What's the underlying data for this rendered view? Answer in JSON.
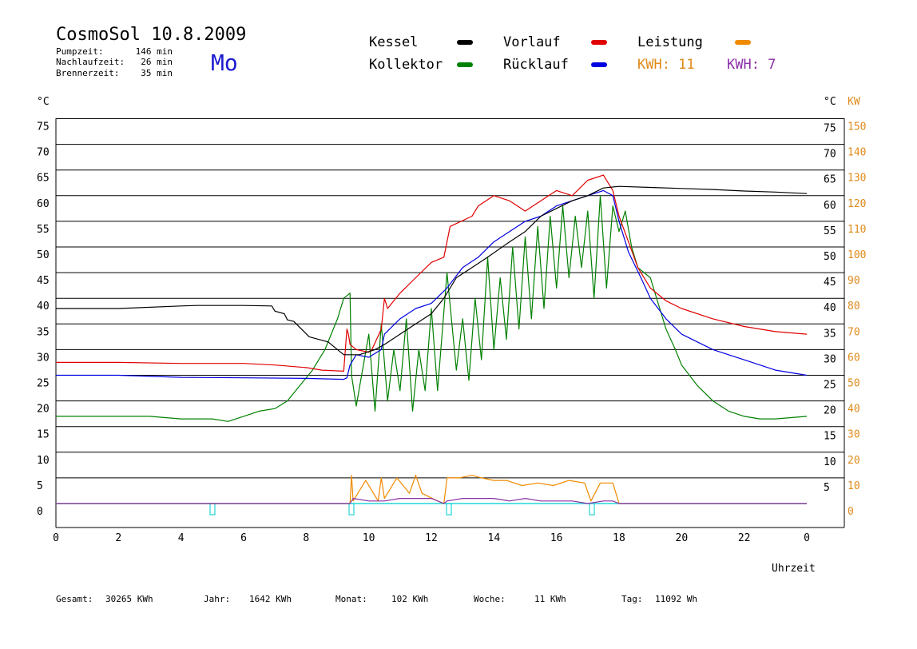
{
  "header": {
    "title": "CosmoSol 10.8.2009",
    "day": "Mo",
    "stats": [
      {
        "label": "Pumpzeit:",
        "value": "146 min"
      },
      {
        "label": "Nachlaufzeit:",
        "value": "26 min"
      },
      {
        "label": "Brennerzeit:",
        "value": "35 min"
      }
    ]
  },
  "legend": {
    "items": [
      {
        "label": "Kessel",
        "color": "#000000"
      },
      {
        "label": "Vorlauf",
        "color": "#e00000"
      },
      {
        "label": "Leistung",
        "color": "#f08a00"
      },
      {
        "label": "Kollektor",
        "color": "#008000"
      },
      {
        "label": "Rücklauf",
        "color": "#0000e0"
      }
    ],
    "kwh": [
      {
        "text": "KWH: 11",
        "color": "#e08a1a"
      },
      {
        "text": "KWH: 7",
        "color": "#8b2fa6"
      }
    ]
  },
  "axes": {
    "y_left_unit": "°C",
    "y_right_unit_temp": "°C",
    "y_right_unit_power": "KW",
    "x_label": "Uhrzeit",
    "x_ticks": [
      "0",
      "2",
      "4",
      "6",
      "8",
      "10",
      "12",
      "14",
      "16",
      "18",
      "20",
      "22",
      "0"
    ],
    "temp_ticks": [
      "0",
      "5",
      "10",
      "15",
      "20",
      "25",
      "30",
      "35",
      "40",
      "45",
      "50",
      "55",
      "60",
      "65",
      "70",
      "75"
    ],
    "right_temp_ticks": [
      "5",
      "10",
      "15",
      "20",
      "25",
      "30",
      "35",
      "40",
      "45",
      "50",
      "55",
      "60",
      "65",
      "70",
      "75"
    ],
    "power_ticks": [
      "0",
      "10",
      "20",
      "30",
      "40",
      "50",
      "60",
      "70",
      "80",
      "90",
      "100",
      "110",
      "120",
      "130",
      "140",
      "150"
    ]
  },
  "footer": {
    "items": [
      {
        "label": "Gesamt:",
        "value": "30265 KWh"
      },
      {
        "label": "Jahr:",
        "value": "1642 KWh"
      },
      {
        "label": "Monat:",
        "value": "102 KWh"
      },
      {
        "label": "Woche:",
        "value": "11 KWh"
      },
      {
        "label": "Tag:",
        "value": "11092 Wh"
      }
    ]
  },
  "chart_data": {
    "type": "line",
    "title": "CosmoSol 10.8.2009",
    "xlabel": "Uhrzeit",
    "ylabel": "°C",
    "xlim": [
      0,
      24
    ],
    "ylim": [
      0,
      75
    ],
    "y2label": "KW",
    "y2lim": [
      0,
      150
    ],
    "grid": true,
    "legend_position": "top",
    "series": [
      {
        "name": "Kessel",
        "color": "#000000",
        "x": [
          0,
          2,
          4,
          4.5,
          6,
          6.9,
          7.0,
          7.3,
          7.4,
          7.6,
          8.1,
          8.7,
          9.2,
          9.4,
          9.7,
          10.2,
          10.5,
          11,
          11.5,
          12,
          12.4,
          12.8,
          13.3,
          13.8,
          14.5,
          15,
          15.5,
          16,
          16.5,
          17,
          17.5,
          18,
          19,
          20,
          21,
          22,
          23,
          24
        ],
        "y": [
          38,
          38,
          38.5,
          38.6,
          38.6,
          38.5,
          37.5,
          37,
          35.8,
          35.5,
          32.5,
          31.5,
          29,
          29,
          29,
          30,
          31,
          33,
          35,
          37,
          40,
          44,
          46,
          48,
          51,
          53,
          56,
          57.5,
          59,
          60,
          61.5,
          61.8,
          61.6,
          61.4,
          61.2,
          60.9,
          60.7,
          60.4
        ]
      },
      {
        "name": "Vorlauf",
        "color": "#e00000",
        "x": [
          0,
          2,
          4,
          6,
          7,
          8,
          8.5,
          9.2,
          9.3,
          9.35,
          9.4,
          9.5,
          9.6,
          10,
          10.1,
          10.4,
          10.5,
          10.6,
          11,
          11.5,
          12,
          12.4,
          12.6,
          13.3,
          13.5,
          14,
          14.5,
          15,
          15.5,
          16,
          16.5,
          17,
          17.5,
          17.8,
          18,
          18.3,
          18.6,
          19,
          19.5,
          20,
          21,
          22,
          23,
          24
        ],
        "y": [
          27.5,
          27.5,
          27.3,
          27.3,
          27,
          26.5,
          26,
          25.8,
          34,
          33,
          31,
          30.5,
          30,
          29.5,
          30,
          34,
          40,
          38,
          41,
          44,
          47,
          48,
          54,
          56,
          58,
          60,
          59,
          57,
          59,
          61,
          60,
          63,
          64,
          61,
          56,
          51,
          46,
          42,
          39.5,
          38,
          36,
          34.5,
          33.5,
          33
        ]
      },
      {
        "name": "Rücklauf",
        "color": "#0000e0",
        "x": [
          0,
          2,
          4,
          6,
          8,
          9.2,
          9.3,
          9.4,
          9.6,
          10,
          10.4,
          10.5,
          11,
          11.5,
          12,
          12.5,
          13,
          13.5,
          14,
          14.5,
          15,
          15.5,
          16,
          16.5,
          17,
          17.5,
          17.8,
          18,
          18.3,
          18.7,
          19,
          19.5,
          20,
          21,
          22,
          23,
          24
        ],
        "y": [
          25,
          25,
          24.6,
          24.5,
          24.4,
          24.2,
          24.5,
          27,
          29,
          28.5,
          30,
          33,
          36,
          38,
          39,
          42,
          46,
          48,
          51,
          53,
          55,
          56,
          58,
          59,
          60,
          61,
          60,
          55,
          49,
          44,
          40,
          36,
          33,
          30,
          28,
          26,
          25
        ]
      },
      {
        "name": "Kollektor",
        "color": "#008000",
        "x": [
          0,
          1,
          2,
          3,
          4,
          5,
          5.5,
          6,
          6.5,
          7,
          7.4,
          7.8,
          8.2,
          8.6,
          9,
          9.2,
          9.4,
          9.45,
          9.6,
          9.8,
          10,
          10.2,
          10.4,
          10.6,
          10.8,
          11,
          11.2,
          11.4,
          11.6,
          11.8,
          12,
          12.2,
          12.5,
          12.8,
          13,
          13.2,
          13.4,
          13.6,
          13.8,
          14,
          14.2,
          14.4,
          14.6,
          14.8,
          15,
          15.2,
          15.4,
          15.6,
          15.8,
          16,
          16.2,
          16.4,
          16.6,
          16.8,
          17,
          17.2,
          17.4,
          17.6,
          17.8,
          18,
          18.2,
          18.4,
          18.6,
          18.8,
          19,
          19.2,
          19.5,
          19.8,
          20,
          20.5,
          21,
          21.5,
          22,
          22.5,
          23,
          24
        ],
        "y": [
          17,
          17,
          17,
          17,
          16.5,
          16.5,
          16,
          17,
          18,
          18.5,
          20,
          23,
          26,
          30,
          36,
          40,
          41,
          25,
          19,
          26,
          33,
          18,
          35,
          20,
          30,
          22,
          36,
          18,
          30,
          22,
          38,
          22,
          45,
          26,
          36,
          24,
          40,
          28,
          48,
          30,
          44,
          32,
          50,
          34,
          52,
          36,
          54,
          38,
          56,
          42,
          58,
          44,
          56,
          46,
          57,
          40,
          60,
          42,
          58,
          53,
          57,
          50,
          46,
          45,
          44,
          40,
          34,
          30,
          27,
          23,
          20,
          18,
          17,
          16.5,
          16.5,
          17
        ]
      },
      {
        "name": "Leistung",
        "color": "#f08a00",
        "axis": "right",
        "unit": "KW",
        "x": [
          0,
          9.4,
          9.45,
          9.5,
          9.9,
          10.3,
          10.4,
          10.5,
          10.9,
          11.3,
          11.5,
          11.7,
          12.2,
          12.4,
          12.5,
          12.9,
          13.3,
          13.6,
          14.0,
          14.4,
          14.9,
          15.4,
          15.9,
          16.4,
          16.9,
          17.1,
          17.4,
          17.8,
          18,
          24
        ],
        "y": [
          0,
          0,
          11,
          1,
          9,
          1,
          10,
          2,
          10,
          4,
          11,
          4,
          1,
          0,
          10,
          10,
          11,
          10,
          9,
          9,
          7,
          8,
          7,
          9,
          8,
          1,
          8,
          8,
          0,
          0
        ]
      },
      {
        "name": "Leistung KWH 7",
        "color": "#8b2fa6",
        "axis": "right",
        "unit": "KW",
        "x": [
          0,
          9.4,
          9.5,
          10,
          10.5,
          11,
          11.5,
          12,
          12.4,
          12.5,
          13,
          13.5,
          14,
          14.5,
          15,
          15.5,
          16,
          16.5,
          17,
          17.5,
          17.8,
          18,
          24
        ],
        "y": [
          0,
          0,
          2,
          1,
          1,
          2,
          2,
          2,
          0,
          1,
          2,
          2,
          2,
          1,
          2,
          1,
          1,
          1,
          0,
          1,
          1,
          0,
          0
        ]
      }
    ]
  }
}
